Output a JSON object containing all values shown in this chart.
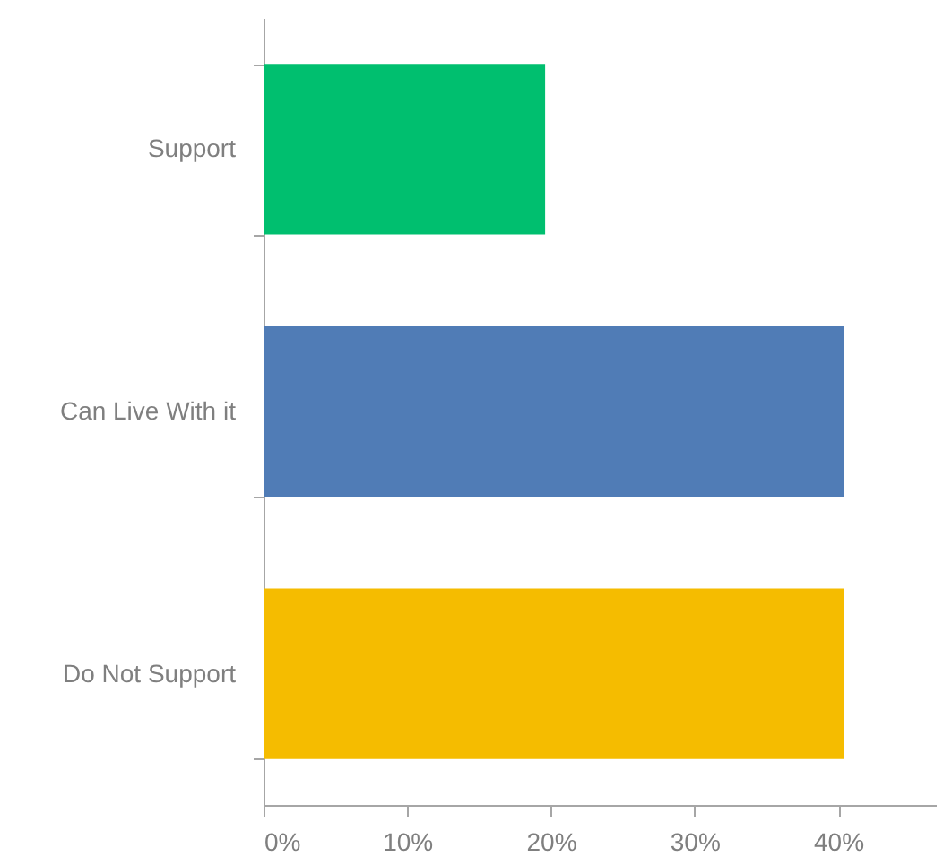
{
  "chart_data": {
    "type": "bar",
    "orientation": "horizontal",
    "categories": [
      "Support",
      "Can Live With it",
      "Do Not Support"
    ],
    "values": [
      19.6,
      40.4,
      40.4
    ],
    "colors": [
      "#00bf6f",
      "#507cb6",
      "#f5bc00"
    ],
    "xlim": [
      0,
      46.8
    ],
    "xticks": [
      {
        "value": 0,
        "label": "0%"
      },
      {
        "value": 10,
        "label": "10%"
      },
      {
        "value": 20,
        "label": "20%"
      },
      {
        "value": 30,
        "label": "30%"
      },
      {
        "value": 40,
        "label": "40%"
      }
    ],
    "grid": false
  }
}
